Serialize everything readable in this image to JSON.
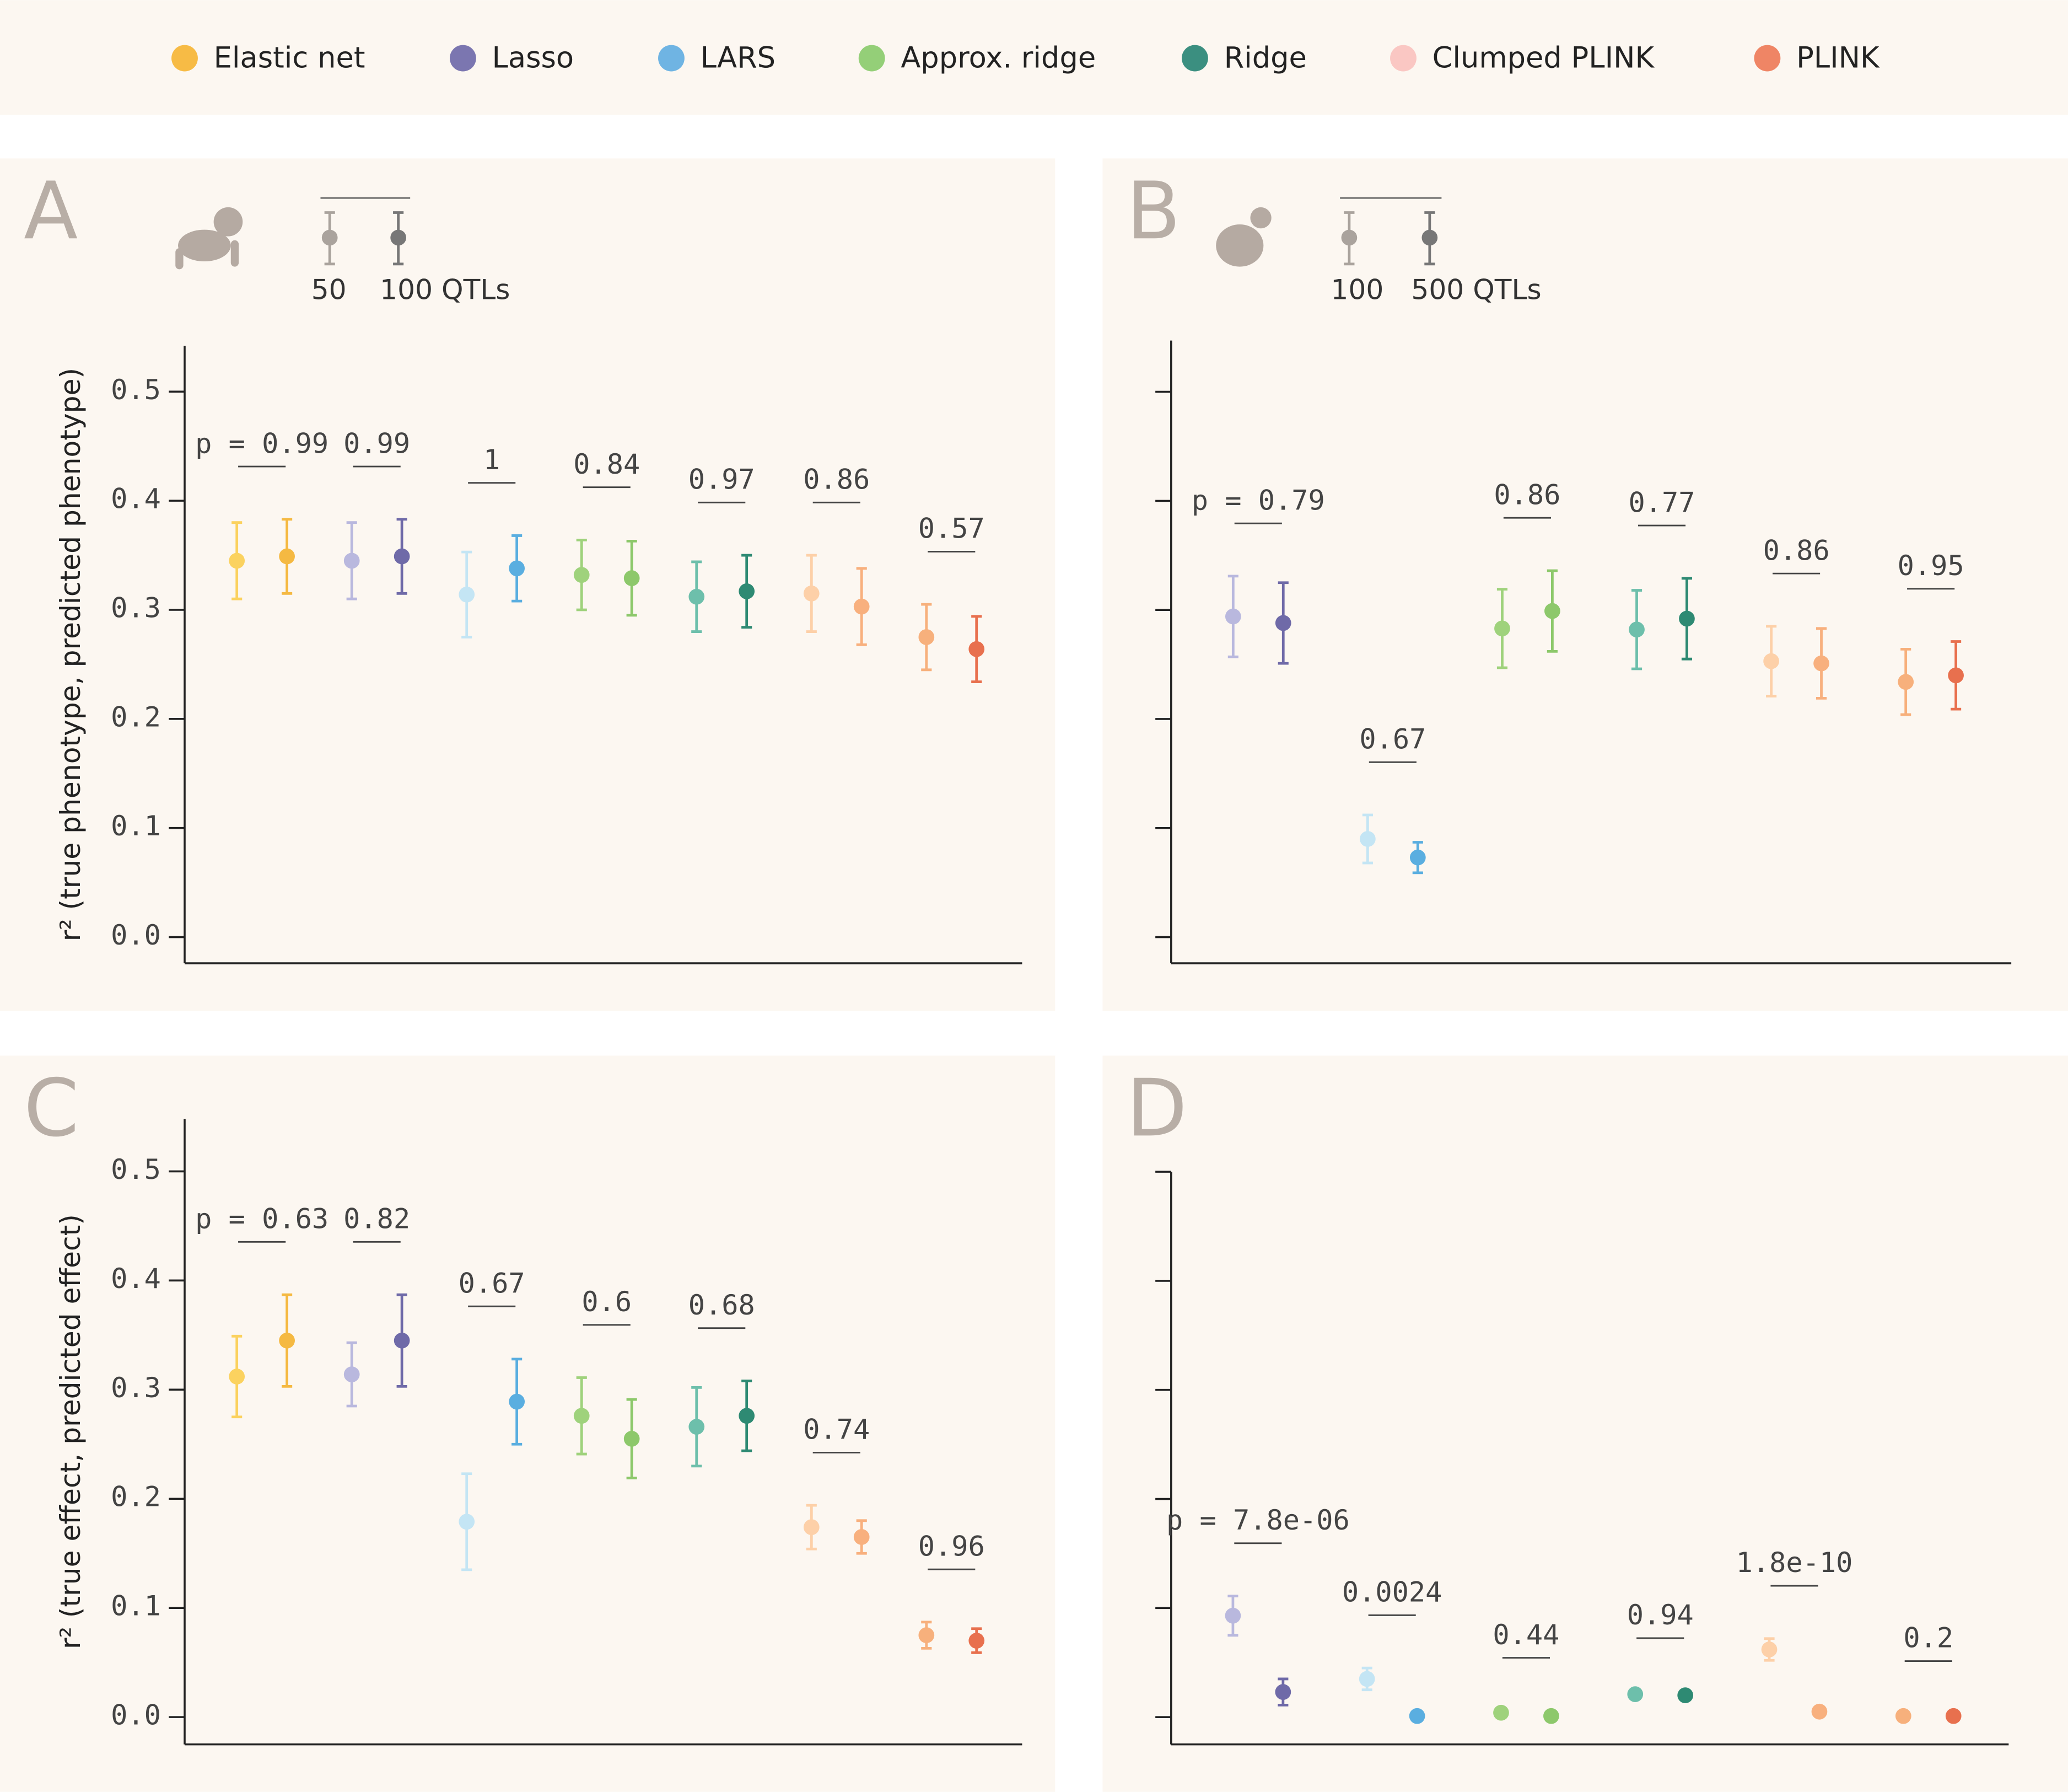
{
  "chart_data": [
    {
      "type": "errorbar",
      "panel": "A",
      "conditions": [
        "50",
        "100 QTLs"
      ],
      "ylabel": "r² (true phenotype, predicted phenotype)",
      "ylim": [
        -0.024,
        0.542
      ],
      "yticks": [
        {
          "value": 0,
          "label": "0.0"
        },
        0.1,
        0.2,
        0.3,
        0.4,
        0.5
      ],
      "show_tick_labels": true,
      "series": [
        {
          "name": "Elastic net",
          "color": "#f7bb45",
          "point_colors": [
            "#fbd25f",
            "#f5b942"
          ],
          "values": [
            0.345,
            0.349
          ],
          "errors": [
            0.035,
            0.034
          ],
          "p_label": "p = 0.99"
        },
        {
          "name": "Lasso",
          "color": "#7b76b0",
          "point_colors": [
            "#b9b8de",
            "#6f6aa8"
          ],
          "values": [
            0.345,
            0.349
          ],
          "errors": [
            0.035,
            0.034
          ],
          "p_label": "0.99"
        },
        {
          "name": "LARS",
          "color": "#6fb4e3",
          "point_colors": [
            "#c4e5f4",
            "#5aaee0"
          ],
          "values": [
            0.314,
            0.338
          ],
          "errors": [
            0.039,
            0.03
          ],
          "p_label": "1"
        },
        {
          "name": "Approx. ridge",
          "color": "#94cf78",
          "point_colors": [
            "#9fd27c",
            "#8dc86b"
          ],
          "values": [
            0.332,
            0.329
          ],
          "errors": [
            0.032,
            0.034
          ],
          "p_label": "0.84"
        },
        {
          "name": "Ridge",
          "color": "#3b8f80",
          "point_colors": [
            "#6dbfab",
            "#2e8a73"
          ],
          "values": [
            0.312,
            0.317
          ],
          "errors": [
            0.032,
            0.033
          ],
          "p_label": "0.97"
        },
        {
          "name": "Clumped PLINK",
          "color": "#fac7c3",
          "point_colors": [
            "#fdd0a8",
            "#f8b07e"
          ],
          "values": [
            0.315,
            0.303
          ],
          "errors": [
            0.035,
            0.035
          ],
          "p_label": "0.86"
        },
        {
          "name": "PLINK",
          "color": "#ef8565",
          "point_colors": [
            "#f7b07c",
            "#e8704e"
          ],
          "values": [
            0.275,
            0.264
          ],
          "errors": [
            0.03,
            0.03
          ],
          "p_label": "0.57"
        }
      ]
    },
    {
      "type": "errorbar",
      "panel": "B",
      "conditions": [
        "100",
        "500 QTLs"
      ],
      "ylim": [
        -0.024,
        0.547
      ],
      "yticks": [
        0,
        0.1,
        0.2,
        0.3,
        0.4,
        0.5
      ],
      "show_tick_labels": false,
      "series": [
        {
          "point_colors": [
            "#fbd25f",
            "#f5b942"
          ],
          "values": [
            null,
            null
          ],
          "errors": [
            null,
            null
          ],
          "p_label": null
        },
        {
          "point_colors": [
            "#b9b8de",
            "#6f6aa8"
          ],
          "values": [
            0.294,
            0.288
          ],
          "errors": [
            0.037,
            0.037
          ],
          "p_label": "p = 0.79"
        },
        {
          "point_colors": [
            "#c4e5f4",
            "#5aaee0"
          ],
          "values": [
            0.09,
            0.073
          ],
          "errors": [
            0.022,
            0.014
          ],
          "p_label": "0.67"
        },
        {
          "point_colors": [
            "#9fd27c",
            "#8dc86b"
          ],
          "values": [
            0.283,
            0.299
          ],
          "errors": [
            0.036,
            0.037
          ],
          "p_label": "0.86"
        },
        {
          "point_colors": [
            "#6dbfab",
            "#2e8a73"
          ],
          "values": [
            0.282,
            0.292
          ],
          "errors": [
            0.036,
            0.037
          ],
          "p_label": "0.77"
        },
        {
          "point_colors": [
            "#fdd0a8",
            "#f8b07e"
          ],
          "values": [
            0.253,
            0.251
          ],
          "errors": [
            0.032,
            0.032
          ],
          "p_label": "0.86"
        },
        {
          "point_colors": [
            "#f7b07c",
            "#e8704e"
          ],
          "values": [
            0.234,
            0.24
          ],
          "errors": [
            0.03,
            0.031
          ],
          "p_label": "0.95"
        }
      ]
    },
    {
      "type": "errorbar",
      "panel": "C",
      "ylabel": "r² (true effect, predicted effect)",
      "ylim": [
        -0.025,
        0.548
      ],
      "yticks": [
        {
          "value": 0,
          "label": "0.0"
        },
        0.1,
        0.2,
        0.3,
        0.4,
        0.5
      ],
      "show_tick_labels": true,
      "series": [
        {
          "point_colors": [
            "#fbd25f",
            "#f5b942"
          ],
          "values": [
            0.312,
            0.345
          ],
          "errors": [
            0.037,
            0.042
          ],
          "p_label": "p = 0.63"
        },
        {
          "point_colors": [
            "#b9b8de",
            "#6f6aa8"
          ],
          "values": [
            0.314,
            0.345
          ],
          "errors": [
            0.029,
            0.042
          ],
          "p_label": "0.82"
        },
        {
          "point_colors": [
            "#c4e5f4",
            "#5aaee0"
          ],
          "values": [
            0.179,
            0.289
          ],
          "errors": [
            0.044,
            0.039
          ],
          "p_label": "0.67"
        },
        {
          "point_colors": [
            "#9fd27c",
            "#8dc86b"
          ],
          "values": [
            0.276,
            0.255
          ],
          "errors": [
            0.035,
            0.036
          ],
          "p_label": "0.6"
        },
        {
          "point_colors": [
            "#6dbfab",
            "#2e8a73"
          ],
          "values": [
            0.266,
            0.276
          ],
          "errors": [
            0.036,
            0.032
          ],
          "p_label": "0.68"
        },
        {
          "point_colors": [
            "#fdd0a8",
            "#f8b07e"
          ],
          "values": [
            0.174,
            0.165
          ],
          "errors": [
            0.02,
            0.015
          ],
          "p_label": "0.74"
        },
        {
          "point_colors": [
            "#f7b07c",
            "#e8704e"
          ],
          "values": [
            0.075,
            0.07
          ],
          "errors": [
            0.012,
            0.011
          ],
          "p_label": "0.96"
        }
      ]
    },
    {
      "type": "errorbar",
      "panel": "D",
      "ylim": [
        -0.025,
        0.5
      ],
      "yticks": [
        0,
        0.1,
        0.2,
        0.3,
        0.4,
        0.5
      ],
      "show_tick_labels": false,
      "series": [
        {
          "point_colors": [
            "#fbd25f",
            "#f5b942"
          ],
          "values": [
            null,
            null
          ],
          "errors": [
            null,
            null
          ],
          "p_label": null
        },
        {
          "point_colors": [
            "#b9b8de",
            "#6f6aa8"
          ],
          "values": [
            0.093,
            0.023
          ],
          "errors": [
            0.018,
            0.012
          ],
          "p_label": "p = 7.8e-06"
        },
        {
          "point_colors": [
            "#c4e5f4",
            "#5aaee0"
          ],
          "values": [
            0.035,
            0.001
          ],
          "errors": [
            0.01,
            0.002
          ],
          "p_label": "0.0024"
        },
        {
          "point_colors": [
            "#9fd27c",
            "#8dc86b"
          ],
          "values": [
            0.004,
            0.001
          ],
          "errors": [
            0.002,
            0.002
          ],
          "p_label": "0.44"
        },
        {
          "point_colors": [
            "#6dbfab",
            "#2e8a73"
          ],
          "values": [
            0.021,
            0.02
          ],
          "errors": [
            0.003,
            0.003
          ],
          "p_label": "0.94"
        },
        {
          "point_colors": [
            "#fdd0a8",
            "#f8b07e"
          ],
          "values": [
            0.062,
            0.005
          ],
          "errors": [
            0.01,
            0.002
          ],
          "p_label": "1.8e-10"
        },
        {
          "point_colors": [
            "#f7b07c",
            "#e8704e"
          ],
          "values": [
            0.001,
            0.001
          ],
          "errors": [
            0.002,
            0.002
          ],
          "p_label": "0.2"
        }
      ]
    }
  ]
}
